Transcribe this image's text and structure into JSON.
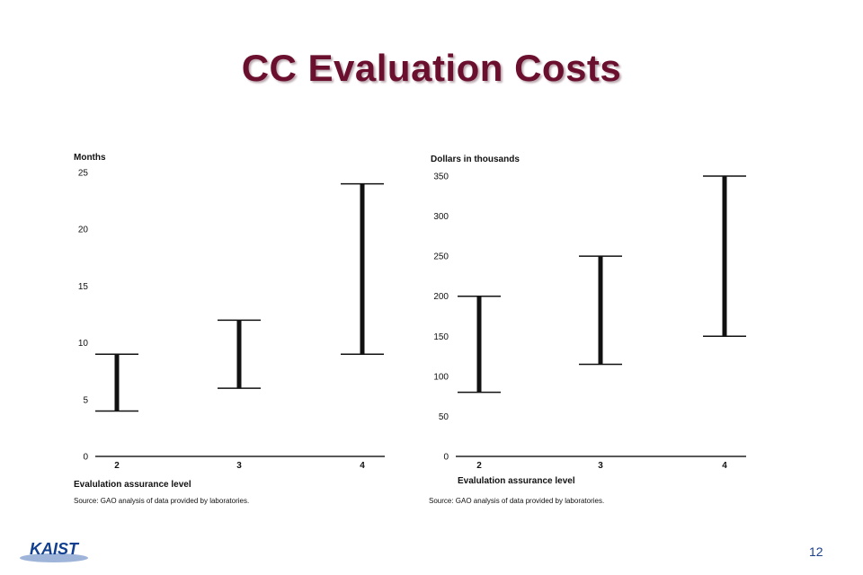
{
  "slide": {
    "title": "CC Evaluation Costs",
    "page_number": "12",
    "logo_text": "KAIST"
  },
  "colors": {
    "title": "#6b0f2e",
    "bar": "#111111",
    "page_number": "#1a3f8f",
    "logo_blue": "#123f8f"
  },
  "chart_data": [
    {
      "type": "range",
      "ylabel": "Months",
      "xlabel": "Evalulation assurance level",
      "source": "Source: GAO analysis of data provided by laboratories.",
      "categories": [
        "2",
        "3",
        "4"
      ],
      "ranges": [
        [
          4,
          9
        ],
        [
          6,
          12
        ],
        [
          9,
          24
        ]
      ],
      "ylim": [
        0,
        25
      ],
      "yticks": [
        0,
        5,
        10,
        15,
        20,
        25
      ],
      "grid": false
    },
    {
      "type": "range",
      "ylabel": "Dollars in thousands",
      "xlabel": "Evalulation assurance level",
      "source": "Source: GAO analysis of data provided by laboratories.",
      "categories": [
        "2",
        "3",
        "4"
      ],
      "ranges": [
        [
          80,
          200
        ],
        [
          115,
          250
        ],
        [
          150,
          350
        ]
      ],
      "ylim": [
        0,
        350
      ],
      "yticks": [
        0,
        50,
        100,
        150,
        200,
        250,
        300,
        350
      ],
      "grid": false
    }
  ]
}
